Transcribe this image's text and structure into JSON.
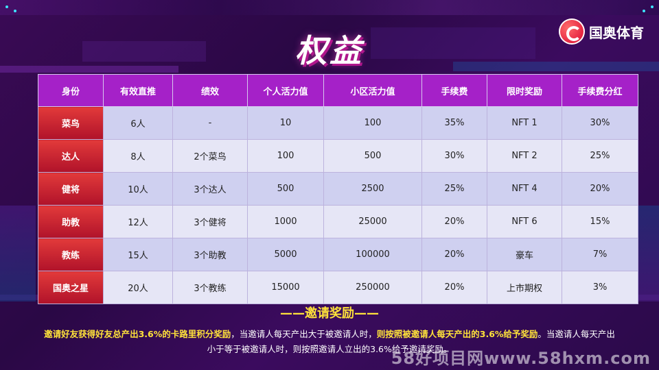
{
  "title": "权益",
  "logo": {
    "text": "国奥体育"
  },
  "table": {
    "headers": [
      "身份",
      "有效直推",
      "绩效",
      "个人活力值",
      "小区活力值",
      "手续费",
      "限时奖励",
      "手续费分红"
    ],
    "rows": [
      [
        "菜鸟",
        "6人",
        "-",
        "10",
        "100",
        "35%",
        "NFT 1",
        "30%"
      ],
      [
        "达人",
        "8人",
        "2个菜鸟",
        "100",
        "500",
        "30%",
        "NFT 2",
        "25%"
      ],
      [
        "健将",
        "10人",
        "3个达人",
        "500",
        "2500",
        "25%",
        "NFT 4",
        "20%"
      ],
      [
        "助教",
        "12人",
        "3个健将",
        "1000",
        "25000",
        "20%",
        "NFT 6",
        "15%"
      ],
      [
        "教练",
        "15人",
        "3个助教",
        "5000",
        "100000",
        "20%",
        "豪车",
        "7%"
      ],
      [
        "国奥之星",
        "20人",
        "3个教练",
        "15000",
        "250000",
        "20%",
        "上市期权",
        "3%"
      ]
    ]
  },
  "invite": {
    "heading": "——邀请奖励——",
    "p1": "邀请好友获得好友总产出3.6%的卡路里积分奖励",
    "p2": "，当邀请人每天产出大于被邀请人时，",
    "p3": "则按照被邀请人每天产出的3.6%给予奖励",
    "p4": "。当邀请人每天产出小于等于被邀请人时，则按照邀请人立出的3.6%给予邀请奖励。"
  },
  "watermark": "58好项目网www.58hxm.com",
  "colors": {
    "header": "#a521c8",
    "rowhead": "#d4202f",
    "highlight": "#ffe23a"
  }
}
